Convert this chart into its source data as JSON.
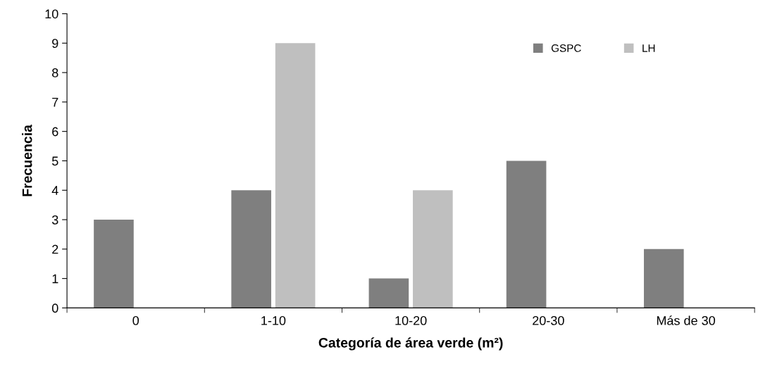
{
  "chart_data": {
    "type": "bar",
    "xlabel": "Categoría de área verde (m²)",
    "ylabel": "Frecuencia",
    "categories": [
      "0",
      "1-10",
      "10-20",
      "20-30",
      "Más de 30"
    ],
    "series": [
      {
        "name": "GSPC",
        "color": "#7f7f7f",
        "values": [
          3,
          4,
          1,
          5,
          2
        ]
      },
      {
        "name": "LH",
        "color": "#bfbfbf",
        "values": [
          0,
          9,
          4,
          0,
          0
        ]
      }
    ],
    "ylim": [
      0,
      10
    ],
    "yticks": [
      0,
      1,
      2,
      3,
      4,
      5,
      6,
      7,
      8,
      9,
      10
    ],
    "grid": false,
    "legend": "top right"
  }
}
